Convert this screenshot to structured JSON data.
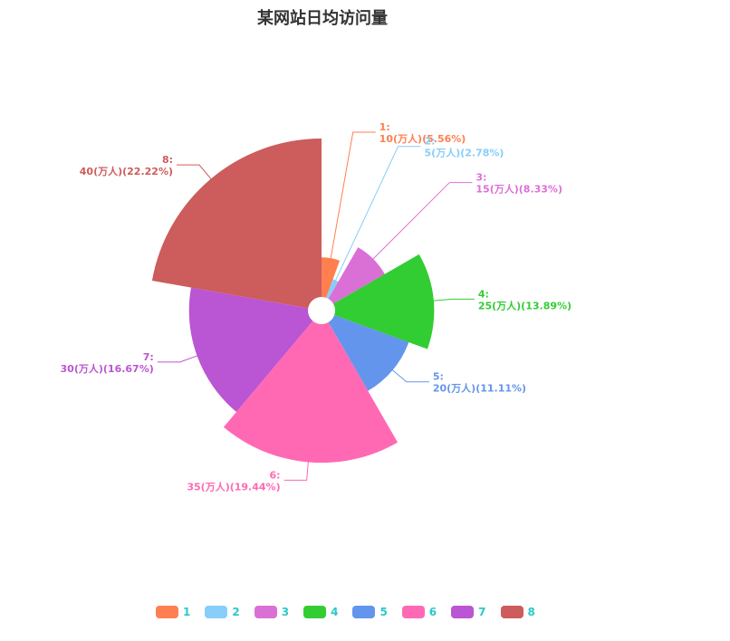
{
  "chart_data": {
    "type": "pie",
    "variant": "rose-radius",
    "title": "某网站日均访问量",
    "unit": "万人",
    "categories": [
      "1",
      "2",
      "3",
      "4",
      "5",
      "6",
      "7",
      "8"
    ],
    "values": [
      10,
      5,
      15,
      25,
      20,
      35,
      30,
      40
    ],
    "percentages": [
      "5.56%",
      "2.78%",
      "8.33%",
      "13.89%",
      "11.11%",
      "19.44%",
      "16.67%",
      "22.22%"
    ],
    "labels": [
      {
        "name": "1:",
        "detail": "10(万人)(5.56%)"
      },
      {
        "name": "2:",
        "detail": "5(万人)(2.78%)"
      },
      {
        "name": "3:",
        "detail": "15(万人)(8.33%)"
      },
      {
        "name": "4:",
        "detail": "25(万人)(13.89%)"
      },
      {
        "name": "5:",
        "detail": "20(万人)(11.11%)"
      },
      {
        "name": "6:",
        "detail": "35(万人)(19.44%)"
      },
      {
        "name": "7:",
        "detail": "30(万人)(16.67%)"
      },
      {
        "name": "8:",
        "detail": "40(万人)(22.22%)"
      }
    ],
    "colors": [
      "#ff7f50",
      "#87cefa",
      "#da70d6",
      "#32cd32",
      "#6495ed",
      "#ff69b4",
      "#ba55d3",
      "#cd5c5c"
    ],
    "legend": {
      "position": "bottom-center",
      "items": [
        "1",
        "2",
        "3",
        "4",
        "5",
        "6",
        "7",
        "8"
      ],
      "text_color": "#2ec7c9"
    }
  }
}
